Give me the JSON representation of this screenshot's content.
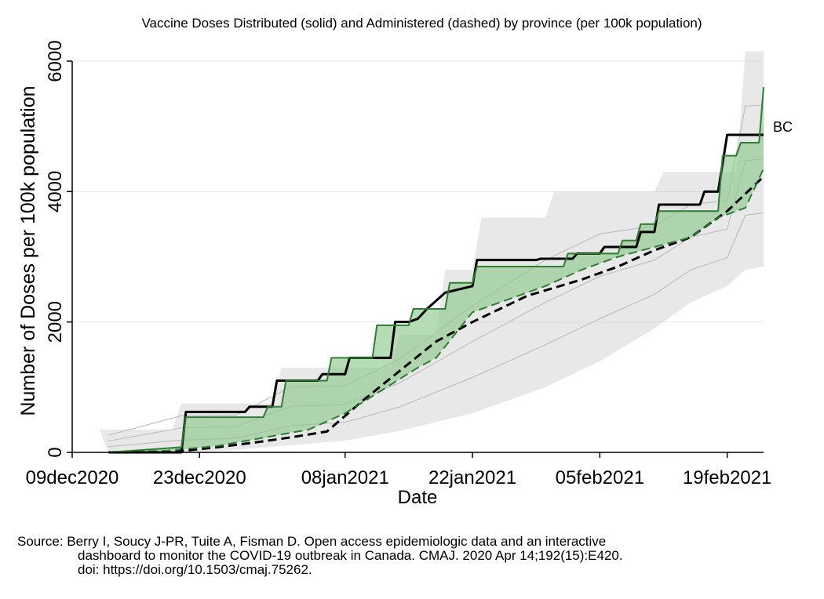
{
  "chart_data": {
    "type": "line",
    "title": "Vaccine Doses Distributed (solid) and Administered (dashed) by province (per 100k population)",
    "xlabel": "Date",
    "ylabel": "Number of Doses per 100k population",
    "x_tick_labels": [
      "09dec2020",
      "23dec2020",
      "08jan2021",
      "22jan2021",
      "05feb2021",
      "19feb2021"
    ],
    "x_ticks_day": [
      0,
      14,
      30,
      44,
      58,
      72
    ],
    "xlim": [
      0,
      76
    ],
    "ylim": [
      0,
      6000
    ],
    "y_ticks": [
      0,
      2000,
      4000,
      6000
    ],
    "y_tick_labels": [
      "0",
      "2000",
      "4000",
      "6000"
    ],
    "grid": "horizontal",
    "annotation": "BC",
    "colors": {
      "national_line": "#000000",
      "bc_line": "#2e7d32",
      "bc_fill": "#8fc98f",
      "province_range": "#bdbdbd"
    },
    "band_upper": {
      "x": [
        3,
        11,
        12,
        22,
        23,
        35,
        36,
        40,
        41,
        44,
        45,
        52,
        53,
        64,
        65,
        73,
        74,
        76
      ],
      "y": [
        350,
        350,
        750,
        750,
        1300,
        1300,
        1800,
        1800,
        2800,
        2800,
        3600,
        3600,
        4000,
        4000,
        4300,
        4300,
        6150,
        6150
      ]
    },
    "band_lower": {
      "x": [
        4,
        12,
        18,
        24,
        30,
        36,
        44,
        52,
        58,
        64,
        68,
        72,
        74,
        76
      ],
      "y": [
        0,
        0,
        40,
        110,
        180,
        330,
        600,
        1000,
        1400,
        1900,
        2300,
        2550,
        2800,
        2850
      ]
    },
    "series": [
      {
        "name": "",
        "kind": "distributed",
        "style": "solid",
        "color": "#000000",
        "x": [
          4,
          12,
          12.5,
          19,
          19.5,
          22,
          22.5,
          27,
          27.5,
          30,
          30.5,
          35,
          35.5,
          37,
          38,
          39,
          41,
          44,
          44.5,
          51,
          51.5,
          55,
          55.5,
          58,
          58.5,
          62,
          62.5,
          64,
          64.5,
          69,
          69.5,
          71,
          72,
          76
        ],
        "y": [
          0,
          0,
          620,
          620,
          700,
          700,
          1100,
          1100,
          1200,
          1200,
          1450,
          1450,
          2000,
          2000,
          2050,
          2200,
          2450,
          2550,
          2950,
          2950,
          2970,
          2970,
          3050,
          3050,
          3150,
          3150,
          3380,
          3380,
          3800,
          3800,
          4000,
          4000,
          4870,
          4870
        ]
      },
      {
        "name": "",
        "kind": "administered",
        "style": "dashed",
        "color": "#000000",
        "x": [
          4,
          12,
          16,
          20,
          24,
          28,
          32,
          36,
          40,
          44,
          50,
          56,
          60,
          64,
          68,
          72,
          76
        ],
        "y": [
          0,
          20,
          80,
          150,
          230,
          320,
          800,
          1250,
          1700,
          2000,
          2400,
          2650,
          2850,
          3100,
          3300,
          3700,
          4230
        ]
      },
      {
        "name": "BC",
        "kind": "distributed",
        "style": "solid",
        "color": "#2e7d32",
        "x": [
          4,
          12,
          12.5,
          21,
          21.5,
          23,
          23.5,
          28,
          28.5,
          33,
          33.5,
          37,
          37.5,
          41,
          41.5,
          44,
          44.5,
          54,
          54.5,
          60,
          60.5,
          62,
          62.5,
          64,
          64.5,
          71,
          71.5,
          73,
          73.5,
          75.5,
          76
        ],
        "y": [
          0,
          80,
          540,
          540,
          700,
          700,
          1100,
          1100,
          1450,
          1450,
          1950,
          1950,
          2200,
          2200,
          2600,
          2600,
          2850,
          2850,
          3050,
          3050,
          3250,
          3250,
          3500,
          3500,
          3700,
          3700,
          4550,
          4550,
          4750,
          4750,
          5600
        ]
      },
      {
        "name": "BC",
        "kind": "administered",
        "style": "dashed",
        "color": "#2e7d32",
        "x": [
          4,
          10,
          16,
          22,
          26,
          30,
          34,
          38,
          40,
          42,
          44,
          48,
          52,
          56,
          60,
          64,
          68,
          71,
          74,
          76
        ],
        "y": [
          0,
          20,
          100,
          250,
          350,
          600,
          950,
          1300,
          1450,
          1800,
          2150,
          2350,
          2550,
          2800,
          3000,
          3150,
          3300,
          3600,
          3750,
          4350
        ]
      }
    ]
  },
  "source": {
    "line1": "Source: Berry I, Soucy J-PR, Tuite A, Fisman D. Open access epidemiologic data and an interactive",
    "line2": "dashboard to monitor the COVID-19 outbreak in Canada. CMAJ. 2020 Apr 14;192(15):E420.",
    "line3": "doi: https://doi.org/10.1503/cmaj.75262."
  }
}
